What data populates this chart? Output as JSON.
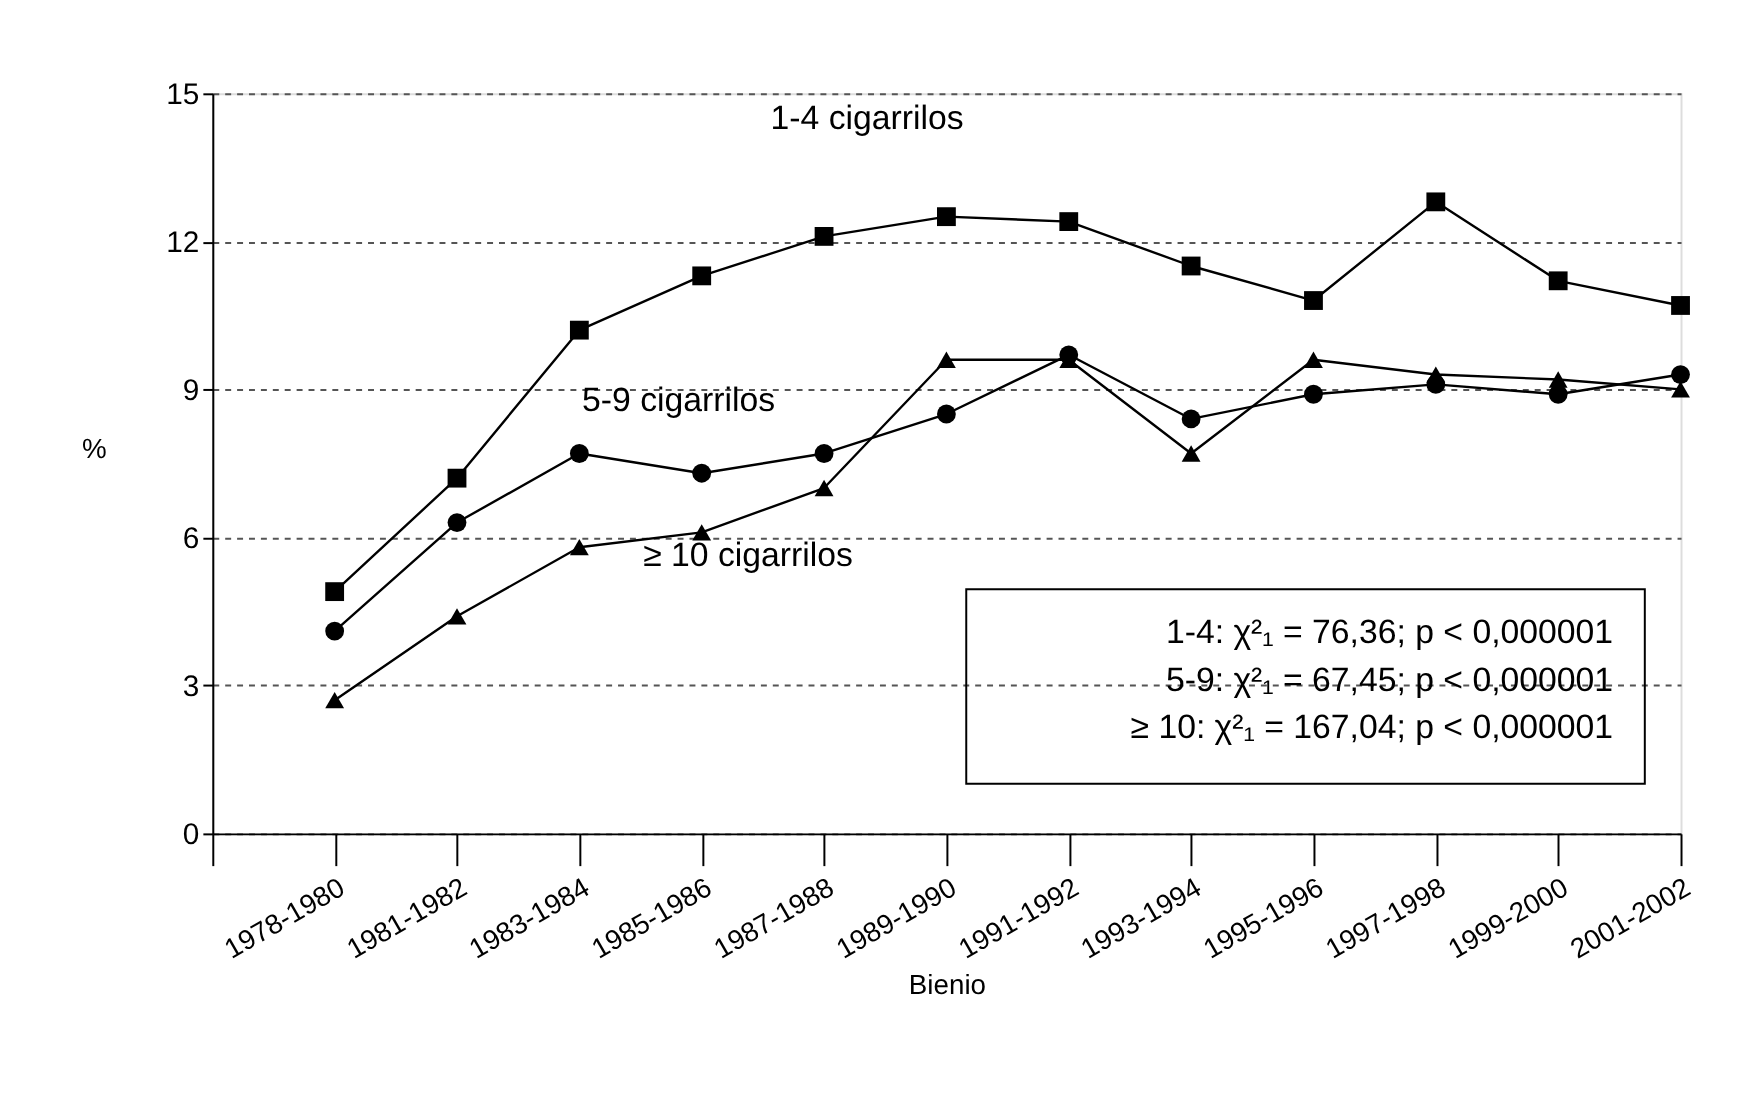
{
  "chart_data": {
    "type": "line",
    "xlabel": "Bienio",
    "ylabel": "%",
    "categories": [
      "1978-1980",
      "1981-1982",
      "1983-1984",
      "1985-1986",
      "1987-1988",
      "1989-1990",
      "1991-1992",
      "1993-1994",
      "1995-1996",
      "1997-1998",
      "1999-2000",
      "2001-2002"
    ],
    "series": [
      {
        "name": "1-4 cigarrilos",
        "color": "#000000",
        "marker": "square",
        "values": [
          4.9,
          7.2,
          10.2,
          11.3,
          12.1,
          12.5,
          12.4,
          11.5,
          10.8,
          12.8,
          11.2,
          10.7
        ]
      },
      {
        "name": "5-9 cigarrilos",
        "color": "#000000",
        "marker": "circle",
        "values": [
          4.1,
          6.3,
          7.7,
          7.3,
          7.7,
          8.5,
          9.7,
          8.4,
          8.9,
          9.1,
          8.9,
          9.3
        ]
      },
      {
        "name": "≥ 10 cigarrilos",
        "color": "#000000",
        "marker": "triangle",
        "values": [
          2.7,
          4.4,
          5.8,
          6.1,
          7.0,
          9.6,
          9.6,
          7.7,
          9.6,
          9.3,
          9.2,
          9.0
        ]
      }
    ],
    "ylim": [
      0,
      15
    ],
    "yticks": [
      0,
      3,
      6,
      9,
      12,
      15
    ],
    "grid": "y",
    "legend": false,
    "line_style": "solid",
    "annotations": [
      "1-4:  χ²₁ =   76,36; p < 0,000001",
      "5-9:  χ²₁ =   67,45; p < 0,000001",
      "≥ 10:  χ²₁ = 167,04; p < 0,000001"
    ]
  }
}
